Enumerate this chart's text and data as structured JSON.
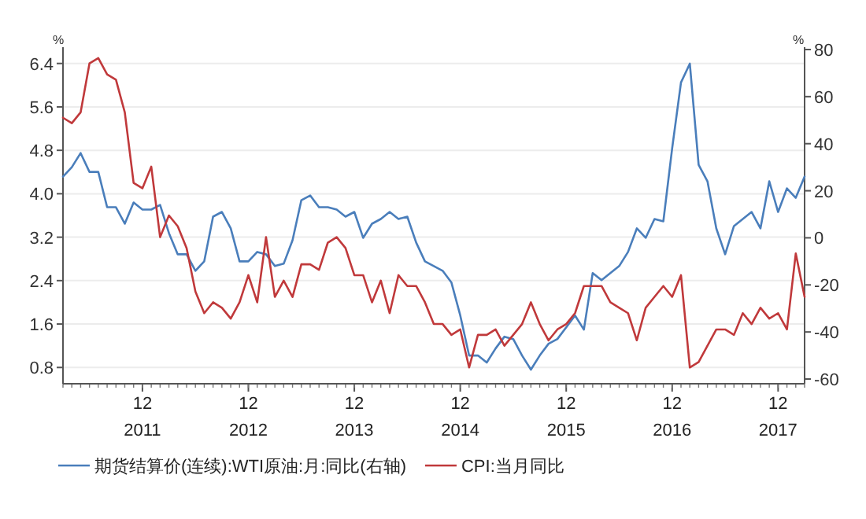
{
  "chart_data": {
    "type": "line",
    "ylabel": "%",
    "y2label": "%",
    "x": [
      "2011-03",
      "2011-04",
      "2011-05",
      "2011-06",
      "2011-07",
      "2011-08",
      "2011-09",
      "2011-10",
      "2011-11",
      "2011-12",
      "2012-01",
      "2012-02",
      "2012-03",
      "2012-04",
      "2012-05",
      "2012-06",
      "2012-07",
      "2012-08",
      "2012-09",
      "2012-10",
      "2012-11",
      "2012-12",
      "2013-01",
      "2013-02",
      "2013-03",
      "2013-04",
      "2013-05",
      "2013-06",
      "2013-07",
      "2013-08",
      "2013-09",
      "2013-10",
      "2013-11",
      "2013-12",
      "2014-01",
      "2014-02",
      "2014-03",
      "2014-04",
      "2014-05",
      "2014-06",
      "2014-07",
      "2014-08",
      "2014-09",
      "2014-10",
      "2014-11",
      "2014-12",
      "2015-01",
      "2015-02",
      "2015-03",
      "2015-04",
      "2015-05",
      "2015-06",
      "2015-07",
      "2015-08",
      "2015-09",
      "2015-10",
      "2015-11",
      "2015-12",
      "2016-01",
      "2016-02",
      "2016-03",
      "2016-04",
      "2016-05",
      "2016-06",
      "2016-07",
      "2016-08",
      "2016-09",
      "2016-10",
      "2016-11",
      "2016-12",
      "2017-01",
      "2017-02",
      "2017-03",
      "2017-04",
      "2017-05",
      "2017-06",
      "2017-07",
      "2017-08",
      "2017-09",
      "2017-10",
      "2017-11",
      "2017-12",
      "2018-01",
      "2018-02",
      "2018-03"
    ],
    "series": [
      {
        "name": "期货结算价(连续):WTI原油:月:同比(右轴)",
        "color": "#4a7ebb",
        "axis": "y2",
        "values": [
          26,
          30,
          36,
          28,
          28,
          13,
          13,
          6,
          15,
          12,
          12,
          14,
          2,
          -7,
          -7,
          -14,
          -10,
          9,
          11,
          4,
          -10,
          -10,
          -6,
          -7,
          -12,
          -11,
          -1,
          16,
          18,
          13,
          13,
          12,
          9,
          11,
          0,
          6,
          8,
          11,
          8,
          9,
          -2,
          -10,
          -12,
          -14,
          -19,
          -33,
          -50,
          -50,
          -53,
          -47,
          -42,
          -43,
          -50,
          -56,
          -50,
          -45,
          -43,
          -38,
          -33,
          -39,
          -15,
          -18,
          -15,
          -12,
          -6,
          4,
          0,
          8,
          7,
          38,
          66,
          74,
          31,
          24,
          4,
          -7,
          5,
          8,
          11,
          4,
          24,
          11,
          21,
          17,
          26
        ]
      },
      {
        "name": "CPI:当月同比",
        "color": "#c0393b",
        "values": [
          5.4,
          5.3,
          5.5,
          6.4,
          6.5,
          6.2,
          6.1,
          5.5,
          4.2,
          4.1,
          4.5,
          3.2,
          3.6,
          3.4,
          3.0,
          2.2,
          1.8,
          2.0,
          1.9,
          1.7,
          2.0,
          2.5,
          2.0,
          3.2,
          2.1,
          2.4,
          2.1,
          2.7,
          2.7,
          2.6,
          3.1,
          3.2,
          3.0,
          2.5,
          2.5,
          2.0,
          2.4,
          1.8,
          2.5,
          2.3,
          2.3,
          2.0,
          1.6,
          1.6,
          1.4,
          1.5,
          0.8,
          1.4,
          1.4,
          1.5,
          1.2,
          1.4,
          1.6,
          2.0,
          1.6,
          1.3,
          1.5,
          1.6,
          1.8,
          2.3,
          2.3,
          2.3,
          2.0,
          1.9,
          1.8,
          1.3,
          1.9,
          2.1,
          2.3,
          2.1,
          2.5,
          0.8,
          0.9,
          1.2,
          1.5,
          1.5,
          1.4,
          1.8,
          1.6,
          1.9,
          1.7,
          1.8,
          1.5,
          2.9,
          2.1
        ]
      }
    ],
    "xlim": [
      "2011-03",
      "2018-03"
    ],
    "xticks": [
      {
        "value": "2011-12",
        "label": "12\n2011"
      },
      {
        "value": "2012-12",
        "label": "12\n2012"
      },
      {
        "value": "2013-12",
        "label": "12\n2013"
      },
      {
        "value": "2014-12",
        "label": "12\n2014"
      },
      {
        "value": "2015-12",
        "label": "12\n2015"
      },
      {
        "value": "2016-12",
        "label": "12\n2016"
      },
      {
        "value": "2017-12",
        "label": "12\n2017"
      }
    ],
    "ylim": [
      0.5,
      6.7
    ],
    "yticks": [
      0.8,
      1.6,
      2.4,
      3.2,
      {
        "value": 4,
        "label": "4.0"
      },
      4.8,
      5.6,
      6.4
    ],
    "y2lim": [
      -62,
      81
    ],
    "y2ticks": [
      -60,
      -40,
      -20,
      0,
      20,
      40,
      60,
      80
    ],
    "grid": "y",
    "legend": "bottom",
    "line_style": "solid"
  }
}
